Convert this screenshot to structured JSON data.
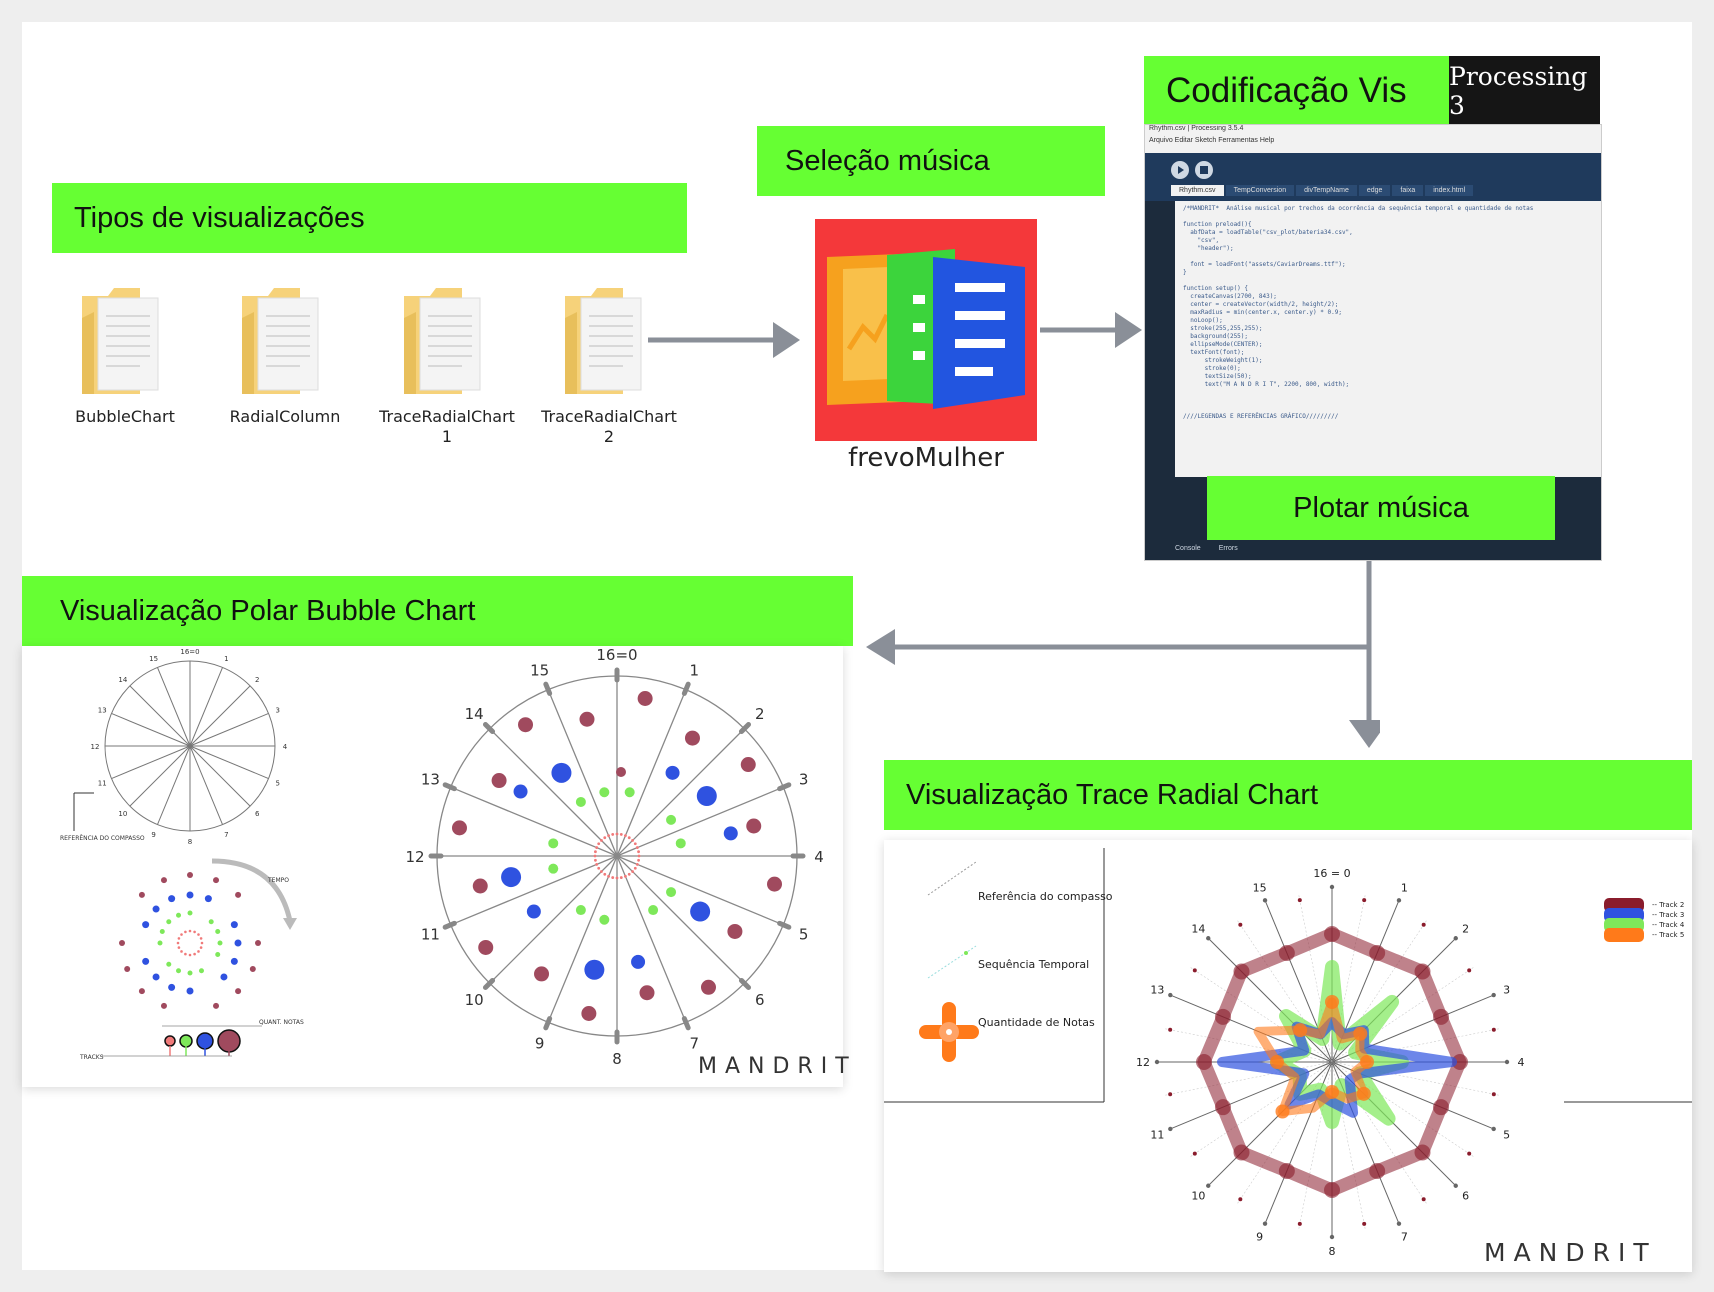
{
  "banners": {
    "tipos": "Tipos de visualizações",
    "selecao": "Seleção música",
    "codificacao": "Codificação Vis",
    "plotar": "Plotar música",
    "polar": "Visualização Polar Bubble Chart",
    "trace": "Visualização Trace Radial Chart"
  },
  "folders": [
    {
      "label": "BubbleChart"
    },
    {
      "label": "RadialColumn"
    },
    {
      "label": "TraceRadialChart 1"
    },
    {
      "label": "TraceRadialChart 2"
    }
  ],
  "app": {
    "name": "frevoMulher"
  },
  "processing": {
    "logo": "Processing 3",
    "window_title": "Rhythm.csv | Processing 3.5.4",
    "menu": "Arquivo  Editar  Sketch  Ferramentas  Help",
    "tabs": [
      "Rhythm.csv",
      "TempConversion",
      "divTempName",
      "edge",
      "faixa",
      "index.html"
    ],
    "console_tabs": [
      "Console",
      "Errors"
    ],
    "code_lines": [
      "/*MANDRIT*  Análise musical por trechos da ocorrência da sequência temporal e quantidade de notas",
      "",
      "function preload(){",
      "  abfData = loadTable(\"csv_plot/bateria34.csv\",",
      "    \"csv\",",
      "    \"header\");",
      "",
      "  font = loadFont(\"assets/CaviarDreams.ttf\");",
      "}",
      "",
      "function setup() {",
      "  createCanvas(2700, 843);",
      "  center = createVector(width/2, height/2);",
      "  maxRadius = min(center.x, center.y) * 0.9;",
      "  noLoop();",
      "  stroke(255,255,255);",
      "  background(255);",
      "  ellipseMode(CENTER);",
      "  textFont(font);",
      "      strokeWeight(1);",
      "      stroke(0);",
      "      textSize(50);",
      "      text(\"M A N D R I T\", 2200, 800, width);",
      "",
      "",
      "",
      "////LEGENDAS E REFERÊNCIAS GRÁFICO/////////"
    ]
  },
  "polar_chart": {
    "small_labels": [
      "16=0",
      "1",
      "2",
      "3",
      "4",
      "5",
      "6",
      "7",
      "8",
      "9",
      "10",
      "11",
      "12",
      "13",
      "14",
      "15"
    ],
    "ref_label": "REFERÊNCIA DO COMPASSO",
    "tempo_label": "TEMPO",
    "notes_label": "QUANT. NOTAS",
    "tracks_label": "TRACKS",
    "main_labels": [
      "16=0",
      "1",
      "2",
      "3",
      "4",
      "5",
      "6",
      "7",
      "8",
      "9",
      "10",
      "11",
      "12",
      "13",
      "14",
      "15"
    ],
    "brand": "MANDRIT",
    "colors": {
      "track1": "#a04a5e",
      "track2": "#2f52e0",
      "track3": "#7ee85a",
      "track4": "#f07a7a"
    }
  },
  "trace_chart": {
    "legend": {
      "ref": "Referência do compasso",
      "seq": "Sequência Temporal",
      "qty": "Quantidade de Notas"
    },
    "tracks": [
      "Track 2",
      "Track 3",
      "Track 4",
      "Track 5"
    ],
    "labels": [
      "16 = 0",
      "1",
      "2",
      "3",
      "4",
      "5",
      "6",
      "7",
      "8",
      "9",
      "10",
      "11",
      "12",
      "13",
      "14",
      "15"
    ],
    "brand": "MANDRIT",
    "colors": {
      "track2": "#8a1c2c",
      "track3": "#2f52e0",
      "track4": "#7ee85a",
      "track5": "#ff7a1a"
    }
  }
}
